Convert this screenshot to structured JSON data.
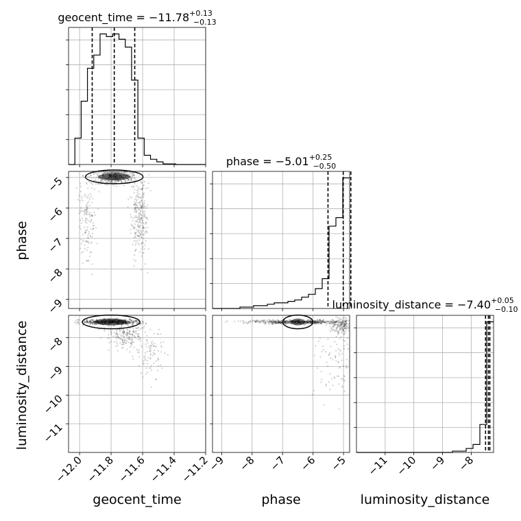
{
  "chart_data": {
    "type": "corner",
    "parameters": [
      {
        "name": "geocent_time",
        "title_label": "geocent_time",
        "median": "−11.78",
        "err_plus": "+0.13",
        "err_minus": "−0.13",
        "range": [
          -12.07,
          -11.2
        ],
        "ticks": [
          -12.0,
          -11.8,
          -11.6,
          -11.4,
          -11.2
        ],
        "tick_labels": [
          "−12.0",
          "−11.8",
          "−11.6",
          "−11.4",
          "−11.2"
        ],
        "quantiles": [
          -11.92,
          -11.78,
          -11.65
        ],
        "hist": {
          "edges_start": -12.07,
          "bin_width": 0.04,
          "counts": [
            0,
            2,
            4.8,
            7.3,
            8.3,
            9.9,
            9.7,
            9.9,
            9.5,
            8.9,
            6.4,
            2.0,
            0.7,
            0.4,
            0.2,
            0.05,
            0.05,
            0,
            0,
            0,
            0,
            0
          ]
        }
      },
      {
        "name": "phase",
        "title_label": "phase",
        "median": "−5.01",
        "err_plus": "+0.25",
        "err_minus": "−0.50",
        "range": [
          -9.3,
          -4.8
        ],
        "ticks": [
          -9,
          -8,
          -7,
          -6,
          -5
        ],
        "tick_labels": [
          "−9",
          "−8",
          "−7",
          "−6",
          "−5"
        ],
        "quantiles": [
          -5.51,
          -5.01,
          -4.76
        ],
        "hist": {
          "edges_start": -9.3,
          "bin_width": 0.225,
          "counts": [
            0,
            0,
            0,
            0,
            0.1,
            0.1,
            0.2,
            0.2,
            0.3,
            0.4,
            0.4,
            0.5,
            0.6,
            0.8,
            1.0,
            1.4,
            2.1,
            5.8,
            6.4,
            9.2
          ]
        }
      },
      {
        "name": "luminosity_distance",
        "title_label": "luminosity_distance",
        "median": "−7.40",
        "err_plus": "+0.05",
        "err_minus": "−0.10",
        "range": [
          -12.0,
          -7.22
        ],
        "ticks": [
          -11,
          -10,
          -9,
          -8
        ],
        "tick_labels": [
          "−11",
          "−10",
          "−9",
          "−8"
        ],
        "quantiles": [
          -7.5,
          -7.4,
          -7.35
        ],
        "hist": {
          "edges_start": -12.0,
          "bin_width": 0.239,
          "counts": [
            0,
            0,
            0,
            0,
            0,
            0,
            0,
            0,
            0,
            0,
            0,
            0,
            0,
            0,
            0.1,
            0.1,
            0.3,
            0.6,
            2.1,
            9.8
          ]
        }
      }
    ],
    "grid": true,
    "scatter_color": "#000000"
  }
}
